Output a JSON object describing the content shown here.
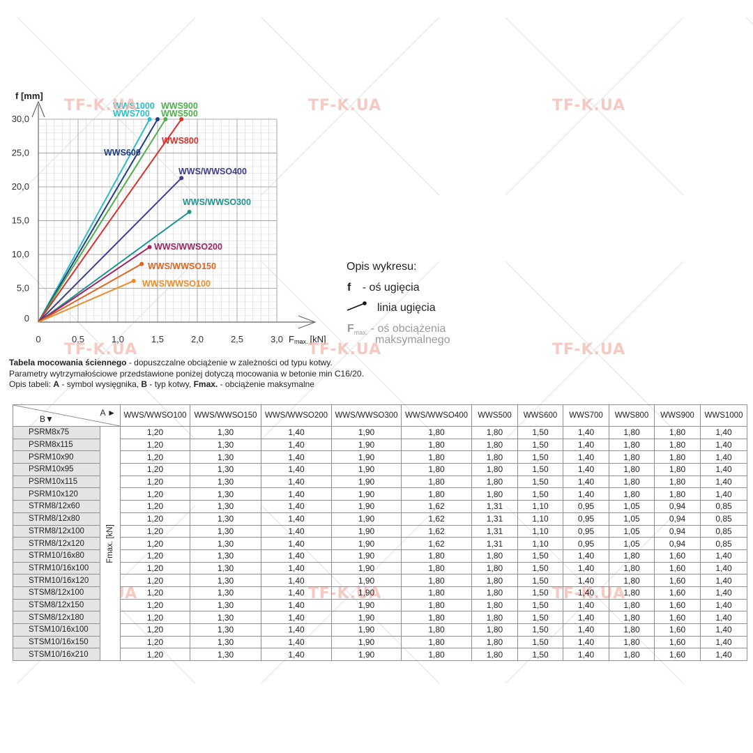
{
  "watermark": "TF-K.UA",
  "chart_data": {
    "type": "line",
    "ylabel": "f [mm]",
    "xlabel": "Fmax. [kN]",
    "xlabel_main": "F",
    "xlabel_sub": "max.",
    "xlabel_unit": "[kN]",
    "xlim": [
      0,
      3.0
    ],
    "ylim": [
      0,
      30
    ],
    "x_ticks": [
      "0",
      "0,5",
      "1,0",
      "1,5",
      "2,0",
      "2,5",
      "3,0"
    ],
    "y_ticks": [
      "0",
      "5,0",
      "10,0",
      "15,0",
      "20,0",
      "25,0",
      "30,0"
    ],
    "x_tick_values": [
      0,
      0.5,
      1.0,
      1.5,
      2.0,
      2.5,
      3.0
    ],
    "y_tick_values": [
      0,
      5,
      10,
      15,
      20,
      25,
      30
    ],
    "grid": true,
    "series": [
      {
        "name": "WWS1000",
        "color": "#2bbdc7",
        "x": [
          0,
          1.4
        ],
        "y": [
          0,
          30
        ]
      },
      {
        "name": "WWS700",
        "color": "#2bbdc7",
        "x": [
          0,
          1.4
        ],
        "y": [
          0,
          30
        ]
      },
      {
        "name": "WWS600",
        "color": "#1f3d84",
        "x": [
          0,
          1.5
        ],
        "y": [
          0,
          30
        ]
      },
      {
        "name": "WWS500",
        "color": "#4caf4a",
        "x": [
          0,
          1.6
        ],
        "y": [
          0,
          30
        ]
      },
      {
        "name": "WWS900",
        "color": "#4caf4a",
        "x": [
          0,
          1.6
        ],
        "y": [
          0,
          30
        ]
      },
      {
        "name": "WWS800",
        "color": "#d8312e",
        "x": [
          0,
          1.8
        ],
        "y": [
          0,
          30
        ]
      },
      {
        "name": "WWS/WWSO400",
        "color": "#3d3d8f",
        "x": [
          0,
          1.8
        ],
        "y": [
          0,
          21.3
        ]
      },
      {
        "name": "WWS/WWSO300",
        "color": "#1d938f",
        "x": [
          0,
          1.9
        ],
        "y": [
          0,
          16.3
        ]
      },
      {
        "name": "WWS/WWSO200",
        "color": "#a02263",
        "x": [
          0,
          1.4
        ],
        "y": [
          0,
          11.1
        ]
      },
      {
        "name": "WWS/WWSO150",
        "color": "#e2631f",
        "x": [
          0,
          1.3
        ],
        "y": [
          0,
          8.6
        ]
      },
      {
        "name": "WWS/WWSO100",
        "color": "#ea8c2c",
        "x": [
          0,
          1.2
        ],
        "y": [
          0,
          6.1
        ]
      }
    ]
  },
  "legend": {
    "title": "Opis wykresu:",
    "f_symbol": "f",
    "f_text": "- oś ugięcia",
    "line_text": "linia ugięcia",
    "fmax_main": "F",
    "fmax_sub": "max.",
    "fmax_text": "- oś obciążenia",
    "fmax_text2": "maksymalnego"
  },
  "captions": {
    "line1_bold": "Tabela mocowania ściennego",
    "line1_rest": " - dopuszczalne obciążenie w zależności od typu kotwy.",
    "line2": "Parametry wytrzymałościowe przedstawione poniżej dotyczą mocowania w betonie min C16/20.",
    "line3_a": "Opis tabeli: ",
    "line3_A": "A",
    "line3_b": " - symbol wysięgnika, ",
    "line3_B": "B",
    "line3_c": " - typ kotwy, ",
    "line3_F": "Fmax.",
    "line3_d": " - obciążenie maksymalne"
  },
  "table": {
    "corner_a": "A ►",
    "corner_b": "B▼",
    "ylabel": "Fmax. [kN]",
    "columns": [
      "WWS/WWSO100",
      "WWS/WWSO150",
      "WWS/WWSO200",
      "WWS/WWSO300",
      "WWS/WWSO400",
      "WWS500",
      "WWS600",
      "WWS700",
      "WWS800",
      "WWS900",
      "WWS1000"
    ],
    "rows": [
      {
        "label": "PSRM8x75",
        "values": [
          "1,20",
          "1,30",
          "1,40",
          "1,90",
          "1,80",
          "1,80",
          "1,50",
          "1,40",
          "1,80",
          "1,80",
          "1,40"
        ]
      },
      {
        "label": "PSRM8x115",
        "values": [
          "1,20",
          "1,30",
          "1,40",
          "1,90",
          "1,80",
          "1,80",
          "1,50",
          "1,40",
          "1,80",
          "1,80",
          "1,40"
        ]
      },
      {
        "label": "PSRM10x90",
        "values": [
          "1,20",
          "1,30",
          "1,40",
          "1,90",
          "1,80",
          "1,80",
          "1,50",
          "1,40",
          "1,80",
          "1,80",
          "1,40"
        ]
      },
      {
        "label": "PSRM10x95",
        "values": [
          "1,20",
          "1,30",
          "1,40",
          "1,90",
          "1,80",
          "1,80",
          "1,50",
          "1,40",
          "1,80",
          "1,80",
          "1,40"
        ]
      },
      {
        "label": "PSRM10x115",
        "values": [
          "1,20",
          "1,30",
          "1,40",
          "1,90",
          "1,80",
          "1,80",
          "1,50",
          "1,40",
          "1,80",
          "1,80",
          "1,40"
        ]
      },
      {
        "label": "PSRM10x120",
        "values": [
          "1,20",
          "1,30",
          "1,40",
          "1,90",
          "1,80",
          "1,80",
          "1,50",
          "1,40",
          "1,80",
          "1,80",
          "1,40"
        ]
      },
      {
        "label": "STRM8/12x60",
        "values": [
          "1,20",
          "1,30",
          "1,40",
          "1,90",
          "1,62",
          "1,31",
          "1,10",
          "0,95",
          "1,05",
          "0,94",
          "0,85"
        ]
      },
      {
        "label": "STRM8/12x80",
        "values": [
          "1,20",
          "1,30",
          "1,40",
          "1,90",
          "1,62",
          "1,31",
          "1,10",
          "0,95",
          "1,05",
          "0,94",
          "0,85"
        ]
      },
      {
        "label": "STRM8/12x100",
        "values": [
          "1,20",
          "1,30",
          "1,40",
          "1,90",
          "1,62",
          "1,31",
          "1,10",
          "0,95",
          "1,05",
          "0,94",
          "0,85"
        ]
      },
      {
        "label": "STRM8/12x120",
        "values": [
          "1,20",
          "1,30",
          "1,40",
          "1,90",
          "1,62",
          "1,31",
          "1,10",
          "0,95",
          "1,05",
          "0,94",
          "0,85"
        ]
      },
      {
        "label": "STRM10/16x80",
        "values": [
          "1,20",
          "1,30",
          "1,40",
          "1,90",
          "1,80",
          "1,80",
          "1,50",
          "1,40",
          "1,80",
          "1,60",
          "1,40"
        ]
      },
      {
        "label": "STRM10/16x100",
        "values": [
          "1,20",
          "1,30",
          "1,40",
          "1,90",
          "1,80",
          "1,80",
          "1,50",
          "1,40",
          "1,80",
          "1,60",
          "1,40"
        ]
      },
      {
        "label": "STRM10/16x120",
        "values": [
          "1,20",
          "1,30",
          "1,40",
          "1,90",
          "1,80",
          "1,80",
          "1,50",
          "1,40",
          "1,80",
          "1,60",
          "1,40"
        ]
      },
      {
        "label": "STSM8/12x100",
        "values": [
          "1,20",
          "1,30",
          "1,40",
          "1,90",
          "1,80",
          "1,80",
          "1,50",
          "1,40",
          "1,80",
          "1,60",
          "1,40"
        ]
      },
      {
        "label": "STSM8/12x150",
        "values": [
          "1,20",
          "1,30",
          "1,40",
          "1,90",
          "1,80",
          "1,80",
          "1,50",
          "1,40",
          "1,80",
          "1,60",
          "1,40"
        ]
      },
      {
        "label": "STSM8/12x180",
        "values": [
          "1,20",
          "1,30",
          "1,40",
          "1,90",
          "1,80",
          "1,80",
          "1,50",
          "1,40",
          "1,80",
          "1,60",
          "1,40"
        ]
      },
      {
        "label": "STSM10/16x100",
        "values": [
          "1,20",
          "1,30",
          "1,40",
          "1,90",
          "1,80",
          "1,80",
          "1,50",
          "1,40",
          "1,80",
          "1,60",
          "1,40"
        ]
      },
      {
        "label": "STSM10/16x150",
        "values": [
          "1,20",
          "1,30",
          "1,40",
          "1,90",
          "1,80",
          "1,80",
          "1,50",
          "1,40",
          "1,80",
          "1,60",
          "1,40"
        ]
      },
      {
        "label": "STSM10/16x210",
        "values": [
          "1,20",
          "1,30",
          "1,40",
          "1,90",
          "1,80",
          "1,80",
          "1,50",
          "1,40",
          "1,80",
          "1,60",
          "1,40"
        ]
      }
    ]
  }
}
